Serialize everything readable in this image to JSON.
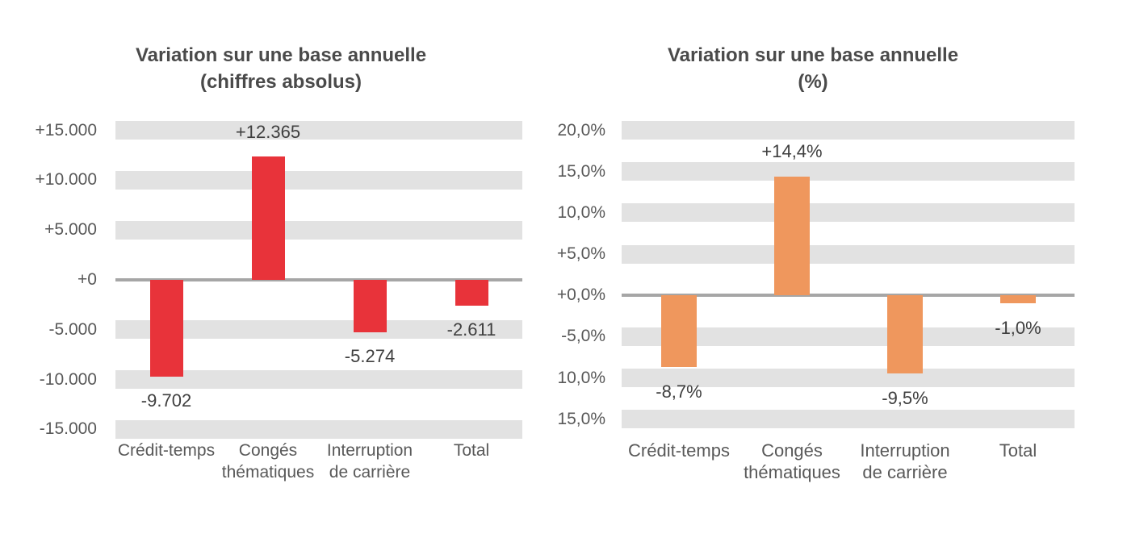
{
  "figure": {
    "background_color": "#FFFFFF",
    "gridline_band_color": "#E2E2E2",
    "zero_line_color": "#A6A6A6",
    "title_color": "#4A4A4A",
    "axis_label_color": "#595959",
    "data_label_color": "#3F3F3F"
  },
  "charts": [
    {
      "title_line1": "Variation sur une base annuelle",
      "title_line2": "(chiffres absolus)",
      "bar_color": "#E8333A",
      "y_ticks": [
        "+15.000",
        "+10.000",
        "+5.000",
        "+0",
        "-5.000",
        "-10.000",
        "-15.000"
      ],
      "categories": [
        [
          "Crédit-temps",
          ""
        ],
        [
          "Congés",
          "thématiques"
        ],
        [
          "Interruption",
          "de carrière"
        ],
        [
          "Total",
          ""
        ]
      ],
      "data_labels": [
        "-9.702",
        "+12.365",
        "-5.274",
        "-2.611"
      ]
    },
    {
      "title_line1": "Variation sur une base annuelle",
      "title_line2": "(%)",
      "bar_color": "#EF975D",
      "y_ticks": [
        "20,0%",
        "15,0%",
        "10,0%",
        "+5,0%",
        "+0,0%",
        "-5,0%",
        "10,0%",
        "15,0%"
      ],
      "categories": [
        [
          "Crédit-temps",
          ""
        ],
        [
          "Congés",
          "thématiques"
        ],
        [
          "Interruption",
          "de carrière"
        ],
        [
          "Total",
          ""
        ]
      ],
      "data_labels": [
        "-8,7%",
        "+14,4%",
        "-9,5%",
        "-1,0%"
      ]
    }
  ],
  "chart_data": [
    {
      "type": "bar",
      "title": "Variation sur une base annuelle (chiffres absolus)",
      "categories": [
        "Crédit-temps",
        "Congés thématiques",
        "Interruption de carrière",
        "Total"
      ],
      "values": [
        -9702,
        12365,
        -5274,
        -2611
      ],
      "data_labels": [
        "-9.702",
        "+12.365",
        "-5.274",
        "-2.611"
      ],
      "y_ticks": [
        "+15.000",
        "+10.000",
        "+5.000",
        "+0",
        "-5.000",
        "-10.000",
        "-15.000"
      ],
      "ylim": [
        -15000,
        15000
      ],
      "bar_color": "#E8333A",
      "grid": "horizontal light-gray bands at each 5.000 step, thick gray line at zero",
      "legend": "none"
    },
    {
      "type": "bar",
      "title": "Variation sur une base annuelle (%)",
      "categories": [
        "Crédit-temps",
        "Congés thématiques",
        "Interruption de carrière",
        "Total"
      ],
      "values": [
        -8.7,
        14.4,
        -9.5,
        -1.0
      ],
      "data_labels": [
        "-8,7%",
        "+14,4%",
        "-9,5%",
        "-1,0%"
      ],
      "y_ticks": [
        "20,0%",
        "15,0%",
        "10,0%",
        "+5,0%",
        "+0,0%",
        "-5,0%",
        "10,0%",
        "15,0%"
      ],
      "ylim": [
        -15,
        20
      ],
      "bar_color": "#EF975D",
      "grid": "horizontal light-gray bands at each 5% step, thick gray line at zero",
      "legend": "none"
    }
  ]
}
